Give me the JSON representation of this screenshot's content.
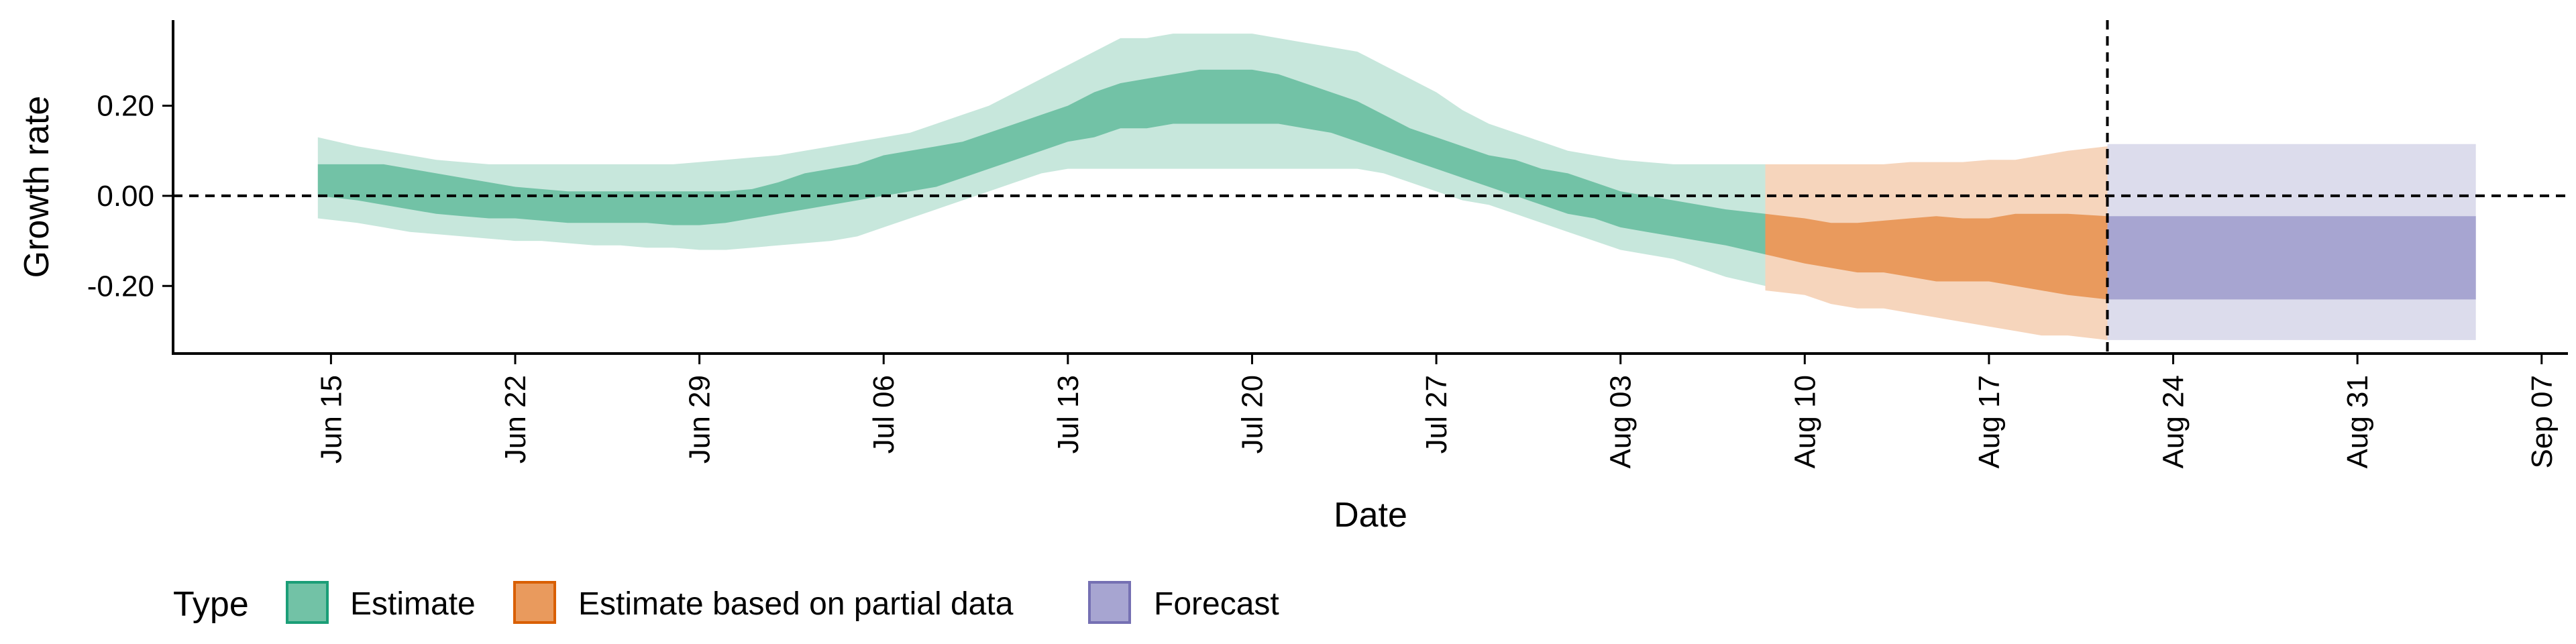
{
  "chart_data": {
    "type": "area",
    "xlabel": "Date",
    "ylabel": "Growth rate",
    "xlim": [
      "2020-06-09",
      "2020-09-08"
    ],
    "ylim": [
      -0.35,
      0.39
    ],
    "x_ticks": [
      "2020-06-15",
      "2020-06-22",
      "2020-06-29",
      "2020-07-06",
      "2020-07-13",
      "2020-07-20",
      "2020-07-27",
      "2020-08-03",
      "2020-08-10",
      "2020-08-17",
      "2020-08-24",
      "2020-08-31",
      "2020-09-07"
    ],
    "x_tick_labels": [
      "Jun 15",
      "Jun 22",
      "Jun 29",
      "Jul 06",
      "Jul 13",
      "Jul 20",
      "Jul 27",
      "Aug 03",
      "Aug 10",
      "Aug 17",
      "Aug 24",
      "Aug 31",
      "Sep 07"
    ],
    "y_ticks": [
      -0.2,
      0.0,
      0.2
    ],
    "y_tick_labels": [
      "-0.20",
      "0.00",
      "0.20"
    ],
    "reference_lines": {
      "horizontal_y": 0.0,
      "vertical_x": "2020-08-21"
    },
    "grid": false,
    "legend": {
      "title": "Type",
      "position": "bottom-left",
      "entries": [
        "Estimate",
        "Estimate based on partial data",
        "Forecast"
      ]
    },
    "colors": {
      "Estimate": {
        "inner": "#72c2a6",
        "outer": "#c7e7dc",
        "key_border": "#1b9e77"
      },
      "Estimate based on partial data": {
        "inner": "#e99a5d",
        "outer": "#f6d5bc",
        "key_border": "#d95f02"
      },
      "Forecast": {
        "inner": "#a7a5d1",
        "outer": "#dcdcec",
        "key_border": "#7570b3"
      }
    },
    "series": [
      {
        "name": "Estimate",
        "x": [
          "2020-06-15",
          "2020-06-16",
          "2020-06-17",
          "2020-06-18",
          "2020-06-19",
          "2020-06-20",
          "2020-06-21",
          "2020-06-22",
          "2020-06-23",
          "2020-06-24",
          "2020-06-25",
          "2020-06-26",
          "2020-06-27",
          "2020-06-28",
          "2020-06-29",
          "2020-06-30",
          "2020-07-01",
          "2020-07-02",
          "2020-07-03",
          "2020-07-04",
          "2020-07-05",
          "2020-07-06",
          "2020-07-07",
          "2020-07-08",
          "2020-07-09",
          "2020-07-10",
          "2020-07-11",
          "2020-07-12",
          "2020-07-13",
          "2020-07-14",
          "2020-07-15",
          "2020-07-16",
          "2020-07-17",
          "2020-07-18",
          "2020-07-19",
          "2020-07-20",
          "2020-07-21",
          "2020-07-22",
          "2020-07-23",
          "2020-07-24",
          "2020-07-25",
          "2020-07-26",
          "2020-07-27",
          "2020-07-28",
          "2020-07-29",
          "2020-07-30",
          "2020-07-31",
          "2020-08-01",
          "2020-08-02",
          "2020-08-03",
          "2020-08-04",
          "2020-08-05",
          "2020-08-06",
          "2020-08-07",
          "2020-08-08"
        ],
        "upper_90": [
          0.13,
          0.11,
          0.1,
          0.09,
          0.08,
          0.075,
          0.07,
          0.07,
          0.07,
          0.07,
          0.07,
          0.07,
          0.07,
          0.07,
          0.075,
          0.08,
          0.085,
          0.09,
          0.1,
          0.11,
          0.12,
          0.13,
          0.14,
          0.16,
          0.18,
          0.2,
          0.23,
          0.26,
          0.29,
          0.32,
          0.35,
          0.35,
          0.36,
          0.36,
          0.36,
          0.36,
          0.35,
          0.34,
          0.33,
          0.32,
          0.29,
          0.26,
          0.23,
          0.19,
          0.16,
          0.14,
          0.12,
          0.1,
          0.09,
          0.08,
          0.075,
          0.07,
          0.07,
          0.07,
          0.07
        ],
        "upper_50": [
          0.07,
          0.07,
          0.07,
          0.06,
          0.05,
          0.04,
          0.03,
          0.02,
          0.015,
          0.01,
          0.01,
          0.01,
          0.01,
          0.01,
          0.01,
          0.01,
          0.015,
          0.03,
          0.05,
          0.06,
          0.07,
          0.09,
          0.1,
          0.11,
          0.12,
          0.14,
          0.16,
          0.18,
          0.2,
          0.23,
          0.25,
          0.26,
          0.27,
          0.28,
          0.28,
          0.28,
          0.27,
          0.25,
          0.23,
          0.21,
          0.18,
          0.15,
          0.13,
          0.11,
          0.09,
          0.08,
          0.06,
          0.05,
          0.03,
          0.01,
          0.0,
          -0.01,
          -0.02,
          -0.03,
          -0.04
        ],
        "lower_50": [
          0.0,
          -0.01,
          -0.02,
          -0.03,
          -0.04,
          -0.045,
          -0.05,
          -0.05,
          -0.055,
          -0.06,
          -0.06,
          -0.06,
          -0.06,
          -0.065,
          -0.065,
          -0.06,
          -0.05,
          -0.04,
          -0.03,
          -0.02,
          -0.01,
          0.0,
          0.01,
          0.02,
          0.04,
          0.06,
          0.08,
          0.1,
          0.12,
          0.13,
          0.15,
          0.15,
          0.16,
          0.16,
          0.16,
          0.16,
          0.16,
          0.15,
          0.14,
          0.12,
          0.1,
          0.08,
          0.06,
          0.04,
          0.02,
          0.0,
          -0.02,
          -0.04,
          -0.05,
          -0.07,
          -0.08,
          -0.09,
          -0.1,
          -0.11,
          -0.13
        ],
        "lower_90": [
          -0.05,
          -0.06,
          -0.07,
          -0.08,
          -0.085,
          -0.09,
          -0.095,
          -0.1,
          -0.1,
          -0.105,
          -0.11,
          -0.11,
          -0.115,
          -0.115,
          -0.12,
          -0.12,
          -0.115,
          -0.11,
          -0.105,
          -0.1,
          -0.09,
          -0.07,
          -0.05,
          -0.03,
          -0.01,
          0.01,
          0.03,
          0.05,
          0.06,
          0.06,
          0.06,
          0.06,
          0.06,
          0.06,
          0.06,
          0.06,
          0.06,
          0.06,
          0.06,
          0.06,
          0.05,
          0.03,
          0.01,
          -0.01,
          -0.02,
          -0.04,
          -0.06,
          -0.08,
          -0.1,
          -0.12,
          -0.13,
          -0.14,
          -0.16,
          -0.18,
          -0.2
        ]
      },
      {
        "name": "Estimate based on partial data",
        "x": [
          "2020-08-09",
          "2020-08-10",
          "2020-08-11",
          "2020-08-12",
          "2020-08-13",
          "2020-08-14",
          "2020-08-15",
          "2020-08-16",
          "2020-08-17",
          "2020-08-18",
          "2020-08-19",
          "2020-08-20",
          "2020-08-21"
        ],
        "upper_90": [
          0.07,
          0.07,
          0.07,
          0.07,
          0.07,
          0.075,
          0.075,
          0.075,
          0.08,
          0.08,
          0.09,
          0.1,
          0.11
        ],
        "upper_50": [
          -0.04,
          -0.05,
          -0.06,
          -0.06,
          -0.055,
          -0.05,
          -0.045,
          -0.05,
          -0.05,
          -0.04,
          -0.04,
          -0.04,
          -0.045
        ],
        "lower_50": [
          -0.13,
          -0.15,
          -0.16,
          -0.17,
          -0.17,
          -0.18,
          -0.19,
          -0.19,
          -0.19,
          -0.2,
          -0.21,
          -0.22,
          -0.23
        ],
        "lower_90": [
          -0.21,
          -0.22,
          -0.24,
          -0.25,
          -0.25,
          -0.26,
          -0.27,
          -0.28,
          -0.29,
          -0.3,
          -0.31,
          -0.31,
          -0.32
        ]
      },
      {
        "name": "Forecast",
        "x": [
          "2020-08-22",
          "2020-09-04"
        ],
        "upper_90": [
          0.115,
          0.115
        ],
        "upper_50": [
          -0.045,
          -0.045
        ],
        "lower_50": [
          -0.23,
          -0.23
        ],
        "lower_90": [
          -0.32,
          -0.32
        ]
      }
    ]
  }
}
